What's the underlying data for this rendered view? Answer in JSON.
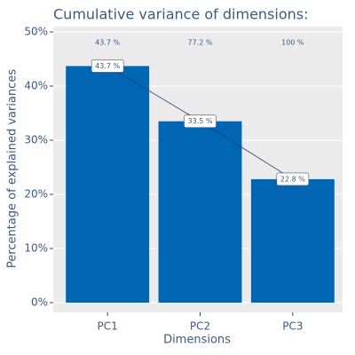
{
  "chart_data": {
    "type": "bar",
    "title": "Cumulative variance of dimensions:",
    "x_label": "Dimensions",
    "y_label": "Percentage of explained variances",
    "categories": [
      "PC1",
      "PC2",
      "PC3"
    ],
    "values": [
      43.7,
      33.5,
      22.8
    ],
    "value_labels": [
      "43.7 %",
      "33.5 %",
      "22.8 %"
    ],
    "cumulative_labels": [
      "43.7 %",
      "77.2 %",
      "100 %"
    ],
    "color": "#0066b3",
    "line_color": "#1f3f7a",
    "ylim": [
      0,
      50
    ],
    "yticks": [
      {
        "value": 0,
        "label": "0%"
      },
      {
        "value": 10,
        "label": "10%"
      },
      {
        "value": 20,
        "label": "20%"
      },
      {
        "value": 30,
        "label": "30%"
      },
      {
        "value": 40,
        "label": "40%"
      },
      {
        "value": 50,
        "label": "50%"
      }
    ],
    "grid": true
  }
}
